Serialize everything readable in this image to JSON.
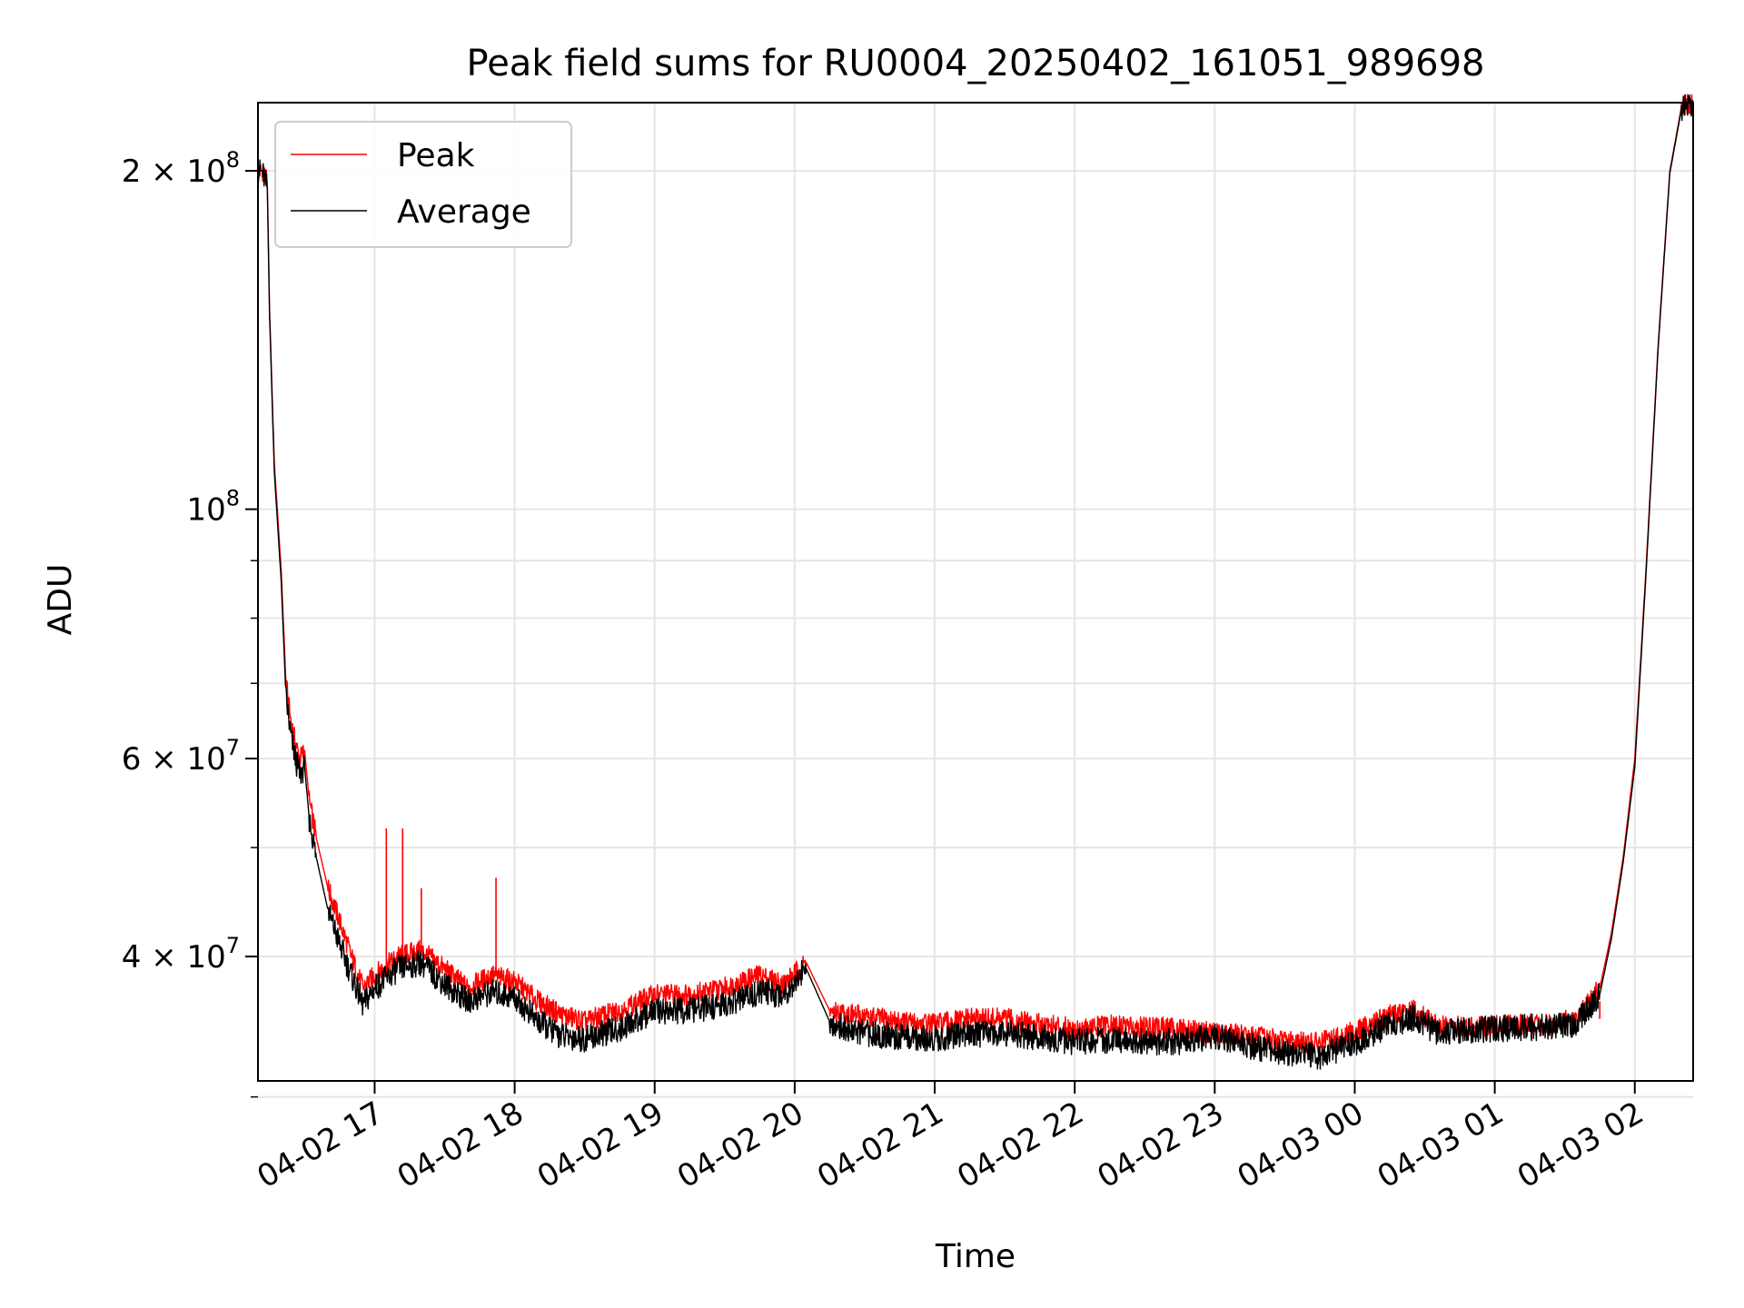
{
  "chart_data": {
    "type": "line",
    "title": "Peak field sums for RU0004_20250402_161051_989698",
    "xlabel": "Time",
    "ylabel": "ADU",
    "y_scale": "log",
    "ylim": [
      31000000,
      230000000
    ],
    "xlim": [
      "2025-04-02 16:10",
      "2025-04-03 02:25"
    ],
    "grid": true,
    "legend_position": "upper-left",
    "x_ticks": [
      {
        "value": "2025-04-02 17:00",
        "label": "04-02 17"
      },
      {
        "value": "2025-04-02 18:00",
        "label": "04-02 18"
      },
      {
        "value": "2025-04-02 19:00",
        "label": "04-02 19"
      },
      {
        "value": "2025-04-02 20:00",
        "label": "04-02 20"
      },
      {
        "value": "2025-04-02 21:00",
        "label": "04-02 21"
      },
      {
        "value": "2025-04-02 22:00",
        "label": "04-02 22"
      },
      {
        "value": "2025-04-02 23:00",
        "label": "04-02 23"
      },
      {
        "value": "2025-04-03 00:00",
        "label": "04-03 00"
      },
      {
        "value": "2025-04-03 01:00",
        "label": "04-03 01"
      },
      {
        "value": "2025-04-03 02:00",
        "label": "04-03 02"
      }
    ],
    "y_major_ticks": [
      {
        "value": 40000000,
        "base": "4",
        "sep": " × ",
        "exp_base": "10",
        "exp": "7"
      },
      {
        "value": 60000000,
        "base": "6",
        "sep": " × ",
        "exp_base": "10",
        "exp": "7"
      },
      {
        "value": 100000000,
        "base": "",
        "sep": "",
        "exp_base": "10",
        "exp": "8"
      },
      {
        "value": 200000000,
        "base": "2",
        "sep": " × ",
        "exp_base": "10",
        "exp": "8"
      }
    ],
    "y_minor_ticks": [
      30000000,
      50000000,
      70000000,
      80000000,
      90000000
    ],
    "series": [
      {
        "name": "Peak",
        "color": "#ff0000",
        "x": [
          "2025-04-02 16:10",
          "2025-04-02 16:12",
          "2025-04-02 16:14",
          "2025-04-02 16:15",
          "2025-04-02 16:17",
          "2025-04-02 16:20",
          "2025-04-02 16:22",
          "2025-04-02 16:24",
          "2025-04-02 16:26",
          "2025-04-02 16:28",
          "2025-04-02 16:30",
          "2025-04-02 16:32",
          "2025-04-02 16:35",
          "2025-04-02 16:40",
          "2025-04-02 16:45",
          "2025-04-02 16:50",
          "2025-04-02 16:55",
          "2025-04-02 17:00",
          "2025-04-02 17:10",
          "2025-04-02 17:20",
          "2025-04-02 17:30",
          "2025-04-02 17:40",
          "2025-04-02 17:50",
          "2025-04-02 18:00",
          "2025-04-02 18:10",
          "2025-04-02 18:20",
          "2025-04-02 18:30",
          "2025-04-02 18:45",
          "2025-04-02 19:00",
          "2025-04-02 19:15",
          "2025-04-02 19:30",
          "2025-04-02 19:45",
          "2025-04-02 19:55",
          "2025-04-02 20:05",
          "2025-04-02 20:15",
          "2025-04-02 20:25",
          "2025-04-02 20:45",
          "2025-04-02 21:00",
          "2025-04-02 21:15",
          "2025-04-02 21:30",
          "2025-04-02 21:45",
          "2025-04-02 22:00",
          "2025-04-02 22:15",
          "2025-04-02 22:30",
          "2025-04-02 22:45",
          "2025-04-02 23:00",
          "2025-04-02 23:15",
          "2025-04-02 23:30",
          "2025-04-02 23:45",
          "2025-04-03 00:00",
          "2025-04-03 00:15",
          "2025-04-03 00:25",
          "2025-04-03 00:35",
          "2025-04-03 00:45",
          "2025-04-03 01:00",
          "2025-04-03 01:15",
          "2025-04-03 01:25",
          "2025-04-03 01:35",
          "2025-04-03 01:45",
          "2025-04-03 01:50",
          "2025-04-03 01:55",
          "2025-04-03 02:00",
          "2025-04-03 02:05",
          "2025-04-03 02:10",
          "2025-04-03 02:15",
          "2025-04-03 02:20",
          "2025-04-03 02:25"
        ],
        "values": [
          200000000,
          200000000,
          195000000,
          150000000,
          110000000,
          88000000,
          70000000,
          65000000,
          62000000,
          60000000,
          61000000,
          55000000,
          51000000,
          46000000,
          43000000,
          40000000,
          37500000,
          38500000,
          40000000,
          40500000,
          39000000,
          37500000,
          38500000,
          38000000,
          36500000,
          35500000,
          35000000,
          35800000,
          37000000,
          37000000,
          37500000,
          38500000,
          37800000,
          39500000,
          35800000,
          35500000,
          35000000,
          34800000,
          35200000,
          35200000,
          34800000,
          34500000,
          34700000,
          34600000,
          34500000,
          34200000,
          34000000,
          33600000,
          33500000,
          34300000,
          35500000,
          35800000,
          34700000,
          34600000,
          34700000,
          34800000,
          34800000,
          35200000,
          37500000,
          42000000,
          49000000,
          60000000,
          90000000,
          140000000,
          200000000,
          228000000,
          230000000
        ],
        "spikes": [
          {
            "x": "2025-04-02 17:05",
            "y": 52000000
          },
          {
            "x": "2025-04-02 17:12",
            "y": 52000000
          },
          {
            "x": "2025-04-02 17:20",
            "y": 46000000
          },
          {
            "x": "2025-04-02 17:52",
            "y": 47000000
          },
          {
            "x": "2025-04-03 01:45",
            "y": 36500000
          }
        ]
      },
      {
        "name": "Average",
        "color": "#000000",
        "x": [
          "2025-04-02 16:10",
          "2025-04-02 16:12",
          "2025-04-02 16:14",
          "2025-04-02 16:15",
          "2025-04-02 16:17",
          "2025-04-02 16:20",
          "2025-04-02 16:22",
          "2025-04-02 16:24",
          "2025-04-02 16:26",
          "2025-04-02 16:28",
          "2025-04-02 16:30",
          "2025-04-02 16:32",
          "2025-04-02 16:35",
          "2025-04-02 16:40",
          "2025-04-02 16:45",
          "2025-04-02 16:50",
          "2025-04-02 16:55",
          "2025-04-02 17:00",
          "2025-04-02 17:10",
          "2025-04-02 17:20",
          "2025-04-02 17:30",
          "2025-04-02 17:40",
          "2025-04-02 17:50",
          "2025-04-02 18:00",
          "2025-04-02 18:10",
          "2025-04-02 18:20",
          "2025-04-02 18:30",
          "2025-04-02 18:45",
          "2025-04-02 19:00",
          "2025-04-02 19:15",
          "2025-04-02 19:30",
          "2025-04-02 19:45",
          "2025-04-02 19:55",
          "2025-04-02 20:05",
          "2025-04-02 20:15",
          "2025-04-02 20:25",
          "2025-04-02 20:45",
          "2025-04-02 21:00",
          "2025-04-02 21:15",
          "2025-04-02 21:30",
          "2025-04-02 21:45",
          "2025-04-02 22:00",
          "2025-04-02 22:15",
          "2025-04-02 22:30",
          "2025-04-02 22:45",
          "2025-04-02 23:00",
          "2025-04-02 23:15",
          "2025-04-02 23:30",
          "2025-04-02 23:45",
          "2025-04-03 00:00",
          "2025-04-03 00:15",
          "2025-04-03 00:25",
          "2025-04-03 00:35",
          "2025-04-03 00:45",
          "2025-04-03 01:00",
          "2025-04-03 01:15",
          "2025-04-03 01:25",
          "2025-04-03 01:35",
          "2025-04-03 01:45",
          "2025-04-03 01:50",
          "2025-04-03 01:55",
          "2025-04-03 02:00",
          "2025-04-03 02:05",
          "2025-04-03 02:10",
          "2025-04-03 02:15",
          "2025-04-03 02:20",
          "2025-04-03 02:25"
        ],
        "values": [
          200000000,
          199000000,
          193000000,
          148000000,
          108000000,
          86000000,
          68000000,
          63000000,
          60000000,
          58000000,
          59000000,
          53000000,
          49000000,
          44000000,
          41000000,
          38500000,
          36200000,
          37500000,
          39000000,
          39500000,
          37800000,
          36500000,
          37200000,
          36800000,
          35000000,
          34000000,
          33800000,
          34500000,
          35800000,
          35800000,
          36200000,
          37200000,
          37000000,
          39000000,
          35000000,
          34300000,
          33900000,
          33800000,
          34100000,
          34200000,
          33900000,
          33600000,
          33700000,
          33600000,
          33600000,
          34000000,
          33300000,
          32800000,
          32600000,
          33500000,
          34800000,
          35300000,
          34300000,
          34300000,
          34500000,
          34600000,
          34600000,
          34900000,
          37000000,
          41500000,
          48500000,
          59000000,
          89000000,
          139000000,
          199000000,
          227000000,
          230000000
        ]
      }
    ]
  }
}
